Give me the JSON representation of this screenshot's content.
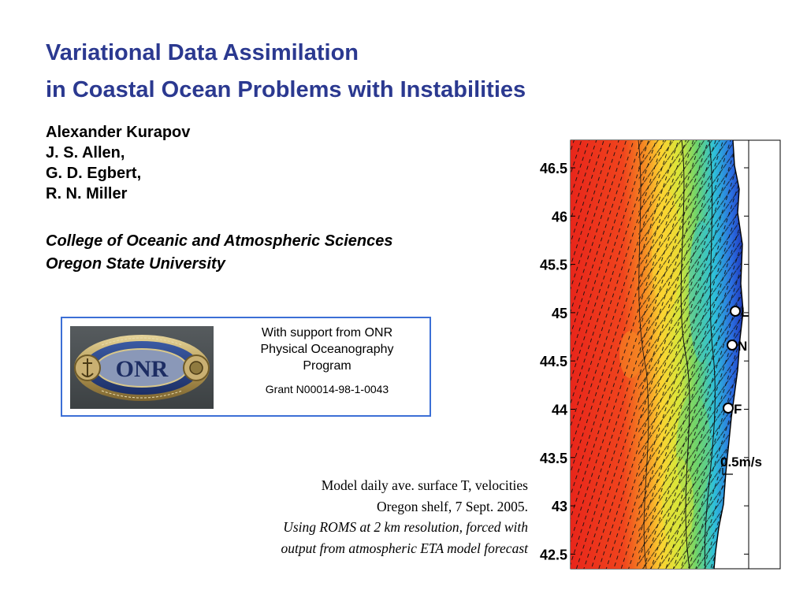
{
  "slide": {
    "title_line1": "Variational Data Assimilation",
    "title_line2": "in Coastal Ocean Problems with Instabilities",
    "authors": [
      "Alexander Kurapov",
      "J. S. Allen,",
      "G. D. Egbert,",
      "R. N. Miller"
    ],
    "affiliation": [
      "College of Oceanic and Atmospheric Sciences",
      "Oregon State University"
    ],
    "accent_color": "#2b3990"
  },
  "support_box": {
    "line1": "With support from ONR",
    "line2": "Physical Oceanography",
    "line3": "Program",
    "grant": "Grant N00014-98-1-0043",
    "logo_text": "ONR",
    "border_color": "#3c6fd6"
  },
  "caption": {
    "line1": "Model daily ave. surface T, velocities",
    "line2": "Oregon shelf, 7 Sept. 2005.",
    "line3": "Using ROMS at 2 km resolution, forced with",
    "line4": "output from atmospheric ETA model forecast"
  },
  "map": {
    "latitude_ticks": [
      "46.5",
      "46",
      "45.5",
      "45",
      "44.5",
      "44",
      "43.5",
      "43",
      "42.5"
    ],
    "station_labels": [
      "L",
      "N",
      "F"
    ],
    "scale_label": "0.5m/s"
  }
}
